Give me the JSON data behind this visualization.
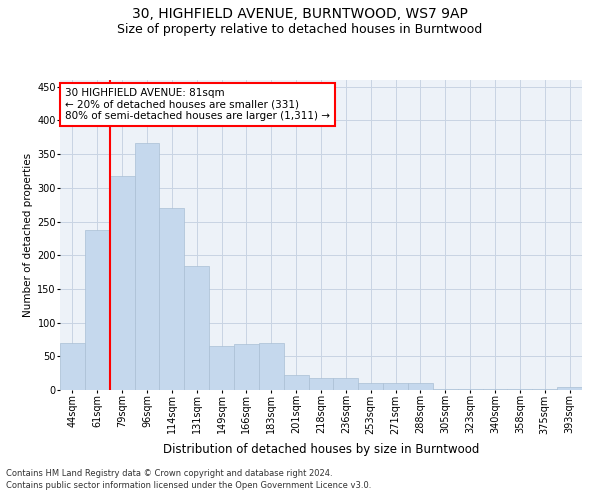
{
  "title1": "30, HIGHFIELD AVENUE, BURNTWOOD, WS7 9AP",
  "title2": "Size of property relative to detached houses in Burntwood",
  "xlabel": "Distribution of detached houses by size in Burntwood",
  "ylabel": "Number of detached properties",
  "categories": [
    "44sqm",
    "61sqm",
    "79sqm",
    "96sqm",
    "114sqm",
    "131sqm",
    "149sqm",
    "166sqm",
    "183sqm",
    "201sqm",
    "218sqm",
    "236sqm",
    "253sqm",
    "271sqm",
    "288sqm",
    "305sqm",
    "323sqm",
    "340sqm",
    "358sqm",
    "375sqm",
    "393sqm"
  ],
  "values": [
    70,
    237,
    317,
    367,
    270,
    184,
    65,
    68,
    70,
    22,
    18,
    18,
    10,
    10,
    10,
    2,
    2,
    2,
    2,
    2,
    4
  ],
  "bar_color": "#c5d8ed",
  "bar_edgecolor": "#aabfd4",
  "vline_x": 1.5,
  "vline_color": "red",
  "annotation_line1": "30 HIGHFIELD AVENUE: 81sqm",
  "annotation_line2": "← 20% of detached houses are smaller (331)",
  "annotation_line3": "80% of semi-detached houses are larger (1,311) →",
  "annotation_box_color": "white",
  "annotation_box_edgecolor": "red",
  "ylim": [
    0,
    460
  ],
  "yticks": [
    0,
    50,
    100,
    150,
    200,
    250,
    300,
    350,
    400,
    450
  ],
  "grid_color": "#c8d4e3",
  "bg_color": "#edf2f8",
  "footer1": "Contains HM Land Registry data © Crown copyright and database right 2024.",
  "footer2": "Contains public sector information licensed under the Open Government Licence v3.0.",
  "title1_fontsize": 10,
  "title2_fontsize": 9,
  "xlabel_fontsize": 8.5,
  "ylabel_fontsize": 7.5,
  "tick_fontsize": 7,
  "annotation_fontsize": 7.5,
  "footer_fontsize": 6
}
